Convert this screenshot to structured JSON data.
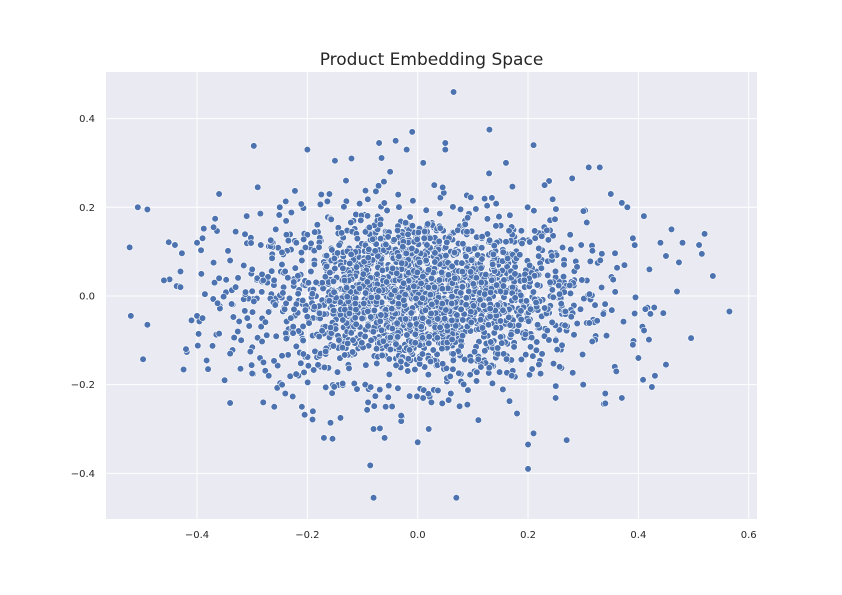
{
  "chart_data": {
    "type": "scatter",
    "title": "Product Embedding Space",
    "xlabel": "",
    "ylabel": "",
    "xlim": [
      -0.565,
      0.615
    ],
    "ylim": [
      -0.503,
      0.505
    ],
    "x_ticks": [
      -0.4,
      -0.2,
      0.0,
      0.2,
      0.4,
      0.6
    ],
    "y_ticks": [
      -0.4,
      -0.2,
      0.0,
      0.2,
      0.4
    ],
    "x_tick_labels": [
      "−0.4",
      "−0.2",
      "0.0",
      "0.2",
      "0.4",
      "0.6"
    ],
    "y_tick_labels": [
      "−0.4",
      "−0.2",
      "0.0",
      "0.2",
      "0.4"
    ],
    "grid": true,
    "background_color": "#eaeaf2",
    "point_color": "#4c72b0",
    "series": [
      {
        "points": [
          [
            -0.52,
            -0.045
          ],
          [
            -0.49,
            0.195
          ],
          [
            -0.49,
            -0.065
          ],
          [
            -0.46,
            0.035
          ],
          [
            -0.44,
            0.115
          ],
          [
            -0.43,
            0.055
          ],
          [
            -0.43,
            0.02
          ],
          [
            -0.42,
            -0.12
          ],
          [
            -0.41,
            -0.055
          ],
          [
            -0.4,
            -0.045
          ],
          [
            -0.4,
            0.12
          ],
          [
            -0.39,
            0.13
          ],
          [
            -0.39,
            -0.05
          ],
          [
            -0.38,
            -0.165
          ],
          [
            -0.37,
            0.075
          ],
          [
            -0.37,
            0.155
          ],
          [
            -0.36,
            0.04
          ],
          [
            -0.36,
            -0.085
          ],
          [
            -0.36,
            0.23
          ],
          [
            -0.35,
            -0.19
          ],
          [
            -0.34,
            -0.13
          ],
          [
            -0.34,
            0.08
          ],
          [
            -0.33,
            0.02
          ],
          [
            -0.33,
            0.145
          ],
          [
            -0.32,
            -0.1
          ],
          [
            -0.31,
            0.18
          ],
          [
            -0.3,
            0.06
          ],
          [
            -0.3,
            -0.175
          ],
          [
            -0.29,
            0.245
          ],
          [
            -0.28,
            -0.24
          ],
          [
            -0.28,
            0.035
          ],
          [
            -0.27,
            -0.18
          ],
          [
            -0.26,
            -0.25
          ],
          [
            -0.25,
            0.2
          ],
          [
            -0.24,
            -0.22
          ],
          [
            -0.23,
            -0.05
          ],
          [
            -0.22,
            0.12
          ],
          [
            -0.21,
            -0.25
          ],
          [
            -0.2,
            0.33
          ],
          [
            -0.19,
            -0.26
          ],
          [
            -0.17,
            -0.32
          ],
          [
            -0.16,
            0.23
          ],
          [
            -0.15,
            0.305
          ],
          [
            -0.14,
            -0.275
          ],
          [
            -0.13,
            0.26
          ],
          [
            -0.12,
            0.31
          ],
          [
            -0.11,
            -0.21
          ],
          [
            -0.09,
            -0.24
          ],
          [
            -0.08,
            -0.455
          ],
          [
            -0.08,
            -0.3
          ],
          [
            -0.07,
            0.345
          ],
          [
            -0.06,
            -0.32
          ],
          [
            -0.05,
            0.28
          ],
          [
            -0.04,
            0.35
          ],
          [
            -0.03,
            -0.27
          ],
          [
            -0.02,
            0.33
          ],
          [
            -0.01,
            0.37
          ],
          [
            0.0,
            -0.33
          ],
          [
            0.01,
            0.3
          ],
          [
            0.02,
            -0.3
          ],
          [
            0.03,
            0.25
          ],
          [
            0.05,
            0.345
          ],
          [
            0.05,
            0.33
          ],
          [
            0.06,
            -0.22
          ],
          [
            0.065,
            0.46
          ],
          [
            0.07,
            -0.455
          ],
          [
            0.09,
            -0.245
          ],
          [
            0.11,
            -0.28
          ],
          [
            0.13,
            0.375
          ],
          [
            0.16,
            0.3
          ],
          [
            0.18,
            -0.265
          ],
          [
            0.2,
            -0.39
          ],
          [
            0.2,
            -0.335
          ],
          [
            0.21,
            -0.31
          ],
          [
            0.21,
            0.34
          ],
          [
            0.23,
            0.25
          ],
          [
            0.25,
            -0.23
          ],
          [
            0.27,
            -0.325
          ],
          [
            0.28,
            0.265
          ],
          [
            0.3,
            -0.2
          ],
          [
            0.31,
            0.29
          ],
          [
            0.33,
            0.29
          ],
          [
            0.34,
            -0.22
          ],
          [
            0.35,
            0.23
          ],
          [
            0.36,
            -0.17
          ],
          [
            0.37,
            0.21
          ],
          [
            0.37,
            -0.23
          ],
          [
            0.38,
            0.2
          ],
          [
            0.39,
            -0.11
          ],
          [
            0.39,
            0.13
          ],
          [
            0.4,
            -0.14
          ],
          [
            0.41,
            0.18
          ],
          [
            0.42,
            0.06
          ],
          [
            0.43,
            -0.18
          ],
          [
            0.44,
            0.12
          ],
          [
            0.45,
            -0.155
          ],
          [
            0.45,
            0.09
          ],
          [
            0.46,
            0.15
          ],
          [
            0.47,
            0.01
          ],
          [
            0.48,
            0.12
          ],
          [
            0.51,
            0.115
          ],
          [
            0.52,
            0.14
          ],
          [
            0.515,
            0.095
          ],
          [
            0.535,
            0.045
          ],
          [
            0.565,
            -0.035
          ]
        ],
        "dense_core_note_count": 2200
      }
    ]
  }
}
